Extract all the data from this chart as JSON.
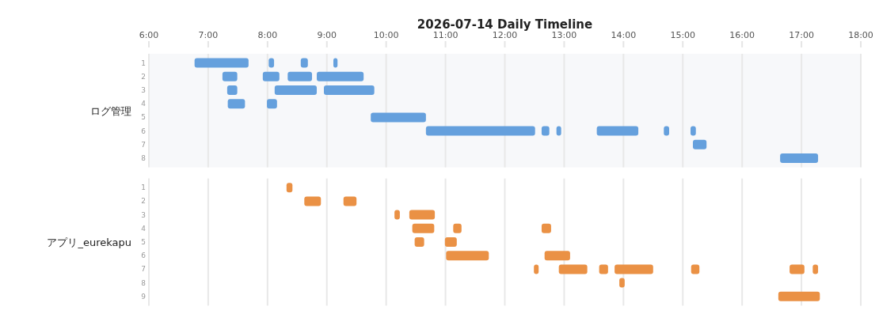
{
  "chart_data": [
    {
      "type": "bar",
      "orientation": "horizontal",
      "title": "2026-07-14 Daily Timeline",
      "ylabel": "ログ管理",
      "categories": [
        "1",
        "2",
        "3",
        "4",
        "5",
        "6",
        "7",
        "8"
      ],
      "xlim": [
        6,
        18
      ],
      "xticks": [
        {
          "value": 6,
          "label": "6:00"
        },
        {
          "value": 7,
          "label": "7:00"
        },
        {
          "value": 8,
          "label": "8:00"
        },
        {
          "value": 9,
          "label": "9:00"
        },
        {
          "value": 10,
          "label": "10:00"
        },
        {
          "value": 11,
          "label": "11:00"
        },
        {
          "value": 12,
          "label": "12:00"
        },
        {
          "value": 13,
          "label": "13:00"
        },
        {
          "value": 14,
          "label": "14:00"
        },
        {
          "value": 15,
          "label": "15:00"
        },
        {
          "value": 16,
          "label": "16:00"
        },
        {
          "value": 17,
          "label": "17:00"
        },
        {
          "value": 18,
          "label": "18:00"
        }
      ],
      "grid": "x",
      "series": [
        {
          "color": "#65a0dd",
          "base": [
            6.77,
            7.24,
            7.32,
            7.33,
            9.74,
            10.67,
            15.17,
            16.64
          ],
          "values": [
            0.91,
            0.25,
            0.17,
            0.29,
            0.93,
            1.84,
            0.23,
            0.64
          ]
        },
        {
          "color": "#65a0dd",
          "base": [
            8.02,
            7.92,
            8.12,
            7.99,
            null,
            12.62,
            null,
            null
          ],
          "values": [
            0.09,
            0.28,
            0.71,
            0.17,
            null,
            0.13,
            null,
            null
          ]
        },
        {
          "color": "#65a0dd",
          "base": [
            8.56,
            8.34,
            8.95,
            null,
            null,
            12.87,
            null,
            null
          ],
          "values": [
            0.12,
            0.41,
            0.85,
            null,
            null,
            0.08,
            null,
            null
          ]
        },
        {
          "color": "#65a0dd",
          "base": [
            9.11,
            8.83,
            null,
            null,
            null,
            13.55,
            null,
            null
          ],
          "values": [
            0.07,
            0.79,
            null,
            null,
            null,
            0.7,
            null,
            null
          ]
        },
        {
          "color": "#65a0dd",
          "base": [
            null,
            null,
            null,
            null,
            null,
            14.68,
            null,
            null
          ],
          "values": [
            null,
            null,
            null,
            null,
            null,
            0.09,
            null,
            null
          ]
        },
        {
          "color": "#65a0dd",
          "base": [
            null,
            null,
            null,
            null,
            null,
            15.13,
            null,
            null
          ],
          "values": [
            null,
            null,
            null,
            null,
            null,
            0.09,
            null,
            null
          ]
        }
      ]
    },
    {
      "type": "bar",
      "orientation": "horizontal",
      "ylabel": "アプリ_eurekapu",
      "categories": [
        "1",
        "2",
        "3",
        "4",
        "5",
        "6",
        "7",
        "8",
        "9"
      ],
      "xlim": [
        6,
        18
      ],
      "xticks": [
        6,
        7,
        8,
        9,
        10,
        11,
        12,
        13,
        14,
        15,
        16,
        17,
        18
      ],
      "grid": "x",
      "tick_labels": "y",
      "series": [
        {
          "color": "#ea9145",
          "base": [
            8.32,
            8.62,
            10.14,
            10.44,
            10.48,
            11.01,
            12.49,
            13.93,
            16.61
          ],
          "values": [
            0.1,
            0.28,
            0.09,
            0.37,
            0.16,
            0.72,
            0.08,
            0.09,
            0.7
          ]
        },
        {
          "color": "#ea9145",
          "base": [
            null,
            9.28,
            10.39,
            11.13,
            10.99,
            12.67,
            12.91,
            null,
            null
          ],
          "values": [
            null,
            0.22,
            0.43,
            0.14,
            0.2,
            0.43,
            0.48,
            null,
            null
          ]
        },
        {
          "color": "#ea9145",
          "base": [
            null,
            null,
            null,
            12.62,
            null,
            null,
            13.59,
            null,
            null
          ],
          "values": [
            null,
            null,
            null,
            0.16,
            null,
            null,
            0.15,
            null,
            null
          ]
        },
        {
          "color": "#ea9145",
          "base": [
            null,
            null,
            null,
            null,
            null,
            null,
            13.85,
            null,
            null
          ],
          "values": [
            null,
            null,
            null,
            null,
            null,
            null,
            0.65,
            null,
            null
          ]
        },
        {
          "color": "#ea9145",
          "base": [
            null,
            null,
            null,
            null,
            null,
            null,
            15.14,
            null,
            null
          ],
          "values": [
            null,
            null,
            null,
            null,
            null,
            null,
            0.14,
            null,
            null
          ]
        },
        {
          "color": "#ea9145",
          "base": [
            null,
            null,
            null,
            null,
            null,
            null,
            16.8,
            null,
            null
          ],
          "values": [
            null,
            null,
            null,
            null,
            null,
            null,
            0.25,
            null,
            null
          ]
        },
        {
          "color": "#ea9145",
          "base": [
            null,
            null,
            null,
            null,
            null,
            null,
            17.19,
            null,
            null
          ],
          "values": [
            null,
            null,
            null,
            null,
            null,
            null,
            0.09,
            null,
            null
          ]
        }
      ]
    }
  ]
}
